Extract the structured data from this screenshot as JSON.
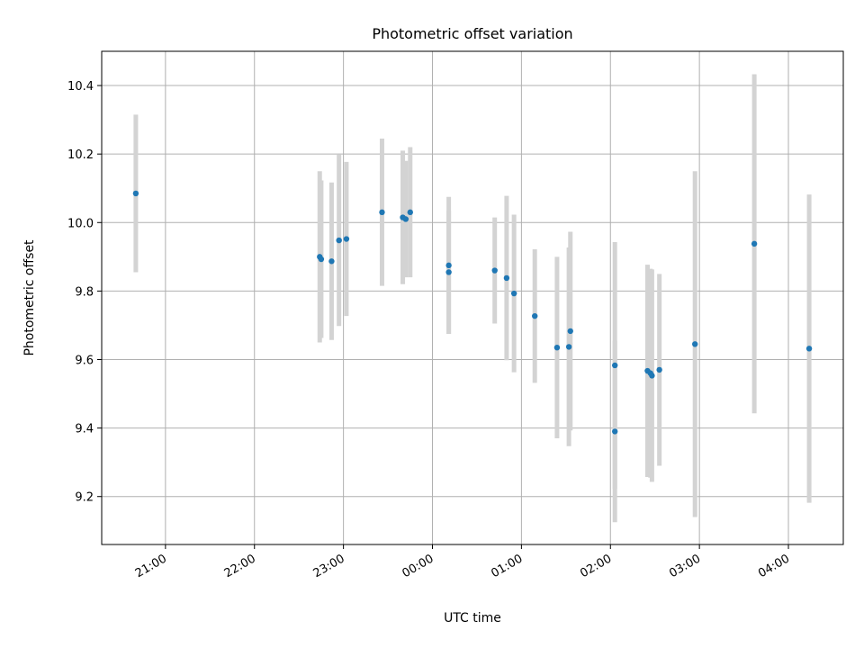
{
  "chart_data": {
    "type": "scatter",
    "title": "Photometric offset variation",
    "xlabel": "UTC time",
    "ylabel": "Photometric offset",
    "x_ticks": [
      "21:00",
      "22:00",
      "23:00",
      "00:00",
      "01:00",
      "02:00",
      "03:00",
      "04:00"
    ],
    "y_ticks": [
      "9.2",
      "9.4",
      "9.6",
      "9.8",
      "10.0",
      "10.2",
      "10.4"
    ],
    "y_tick_values": [
      9.2,
      9.4,
      9.6,
      9.8,
      10.0,
      10.2,
      10.4
    ],
    "ylim": [
      9.06,
      10.5
    ],
    "xlim": [
      "20:17",
      "04:37"
    ],
    "grid": true,
    "marker_color": "#1f77b4",
    "errorbar_color": "#d3d3d3",
    "points": [
      {
        "x": "20:40",
        "y": 10.085,
        "err": 0.23
      },
      {
        "x": "22:44",
        "y": 9.9,
        "err": 0.25
      },
      {
        "x": "22:45",
        "y": 9.893,
        "err": 0.23
      },
      {
        "x": "22:52",
        "y": 9.887,
        "err": 0.23
      },
      {
        "x": "22:57",
        "y": 9.948,
        "err": 0.25
      },
      {
        "x": "23:02",
        "y": 9.952,
        "err": 0.225
      },
      {
        "x": "23:26",
        "y": 10.03,
        "err": 0.215
      },
      {
        "x": "23:40",
        "y": 10.015,
        "err": 0.195
      },
      {
        "x": "23:42",
        "y": 10.01,
        "err": 0.17
      },
      {
        "x": "23:45",
        "y": 10.03,
        "err": 0.19
      },
      {
        "x": "00:11",
        "y": 9.875,
        "err": 0.2
      },
      {
        "x": "00:11",
        "y": 9.855,
        "err": 0.18
      },
      {
        "x": "00:42",
        "y": 9.86,
        "err": 0.155
      },
      {
        "x": "00:50",
        "y": 9.838,
        "err": 0.24
      },
      {
        "x": "00:55",
        "y": 9.793,
        "err": 0.23
      },
      {
        "x": "01:09",
        "y": 9.727,
        "err": 0.195
      },
      {
        "x": "01:24",
        "y": 9.635,
        "err": 0.265
      },
      {
        "x": "01:32",
        "y": 9.637,
        "err": 0.29
      },
      {
        "x": "01:33",
        "y": 9.683,
        "err": 0.29
      },
      {
        "x": "02:03",
        "y": 9.583,
        "err": 0.36
      },
      {
        "x": "02:03",
        "y": 9.39,
        "err": 0.265
      },
      {
        "x": "02:25",
        "y": 9.567,
        "err": 0.31
      },
      {
        "x": "02:27",
        "y": 9.56,
        "err": 0.305
      },
      {
        "x": "02:28",
        "y": 9.553,
        "err": 0.31
      },
      {
        "x": "02:33",
        "y": 9.57,
        "err": 0.28
      },
      {
        "x": "02:57",
        "y": 9.645,
        "err": 0.505
      },
      {
        "x": "03:37",
        "y": 9.938,
        "err": 0.495
      },
      {
        "x": "04:14",
        "y": 9.632,
        "err": 0.45
      }
    ]
  }
}
